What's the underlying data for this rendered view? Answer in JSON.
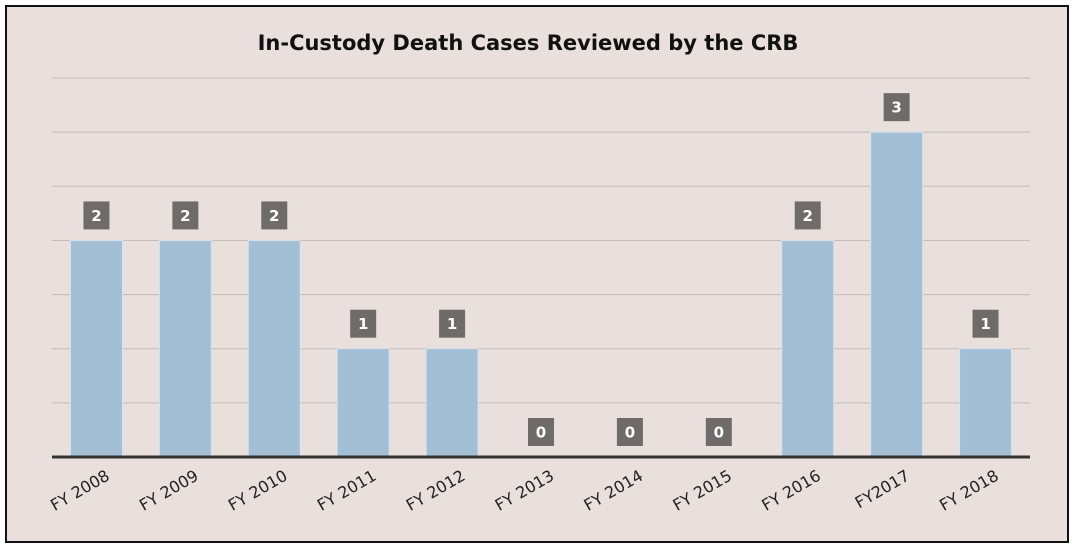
{
  "chart_data": {
    "type": "bar",
    "title": "In-Custody Death Cases Reviewed by the CRB",
    "categories": [
      "FY 2008",
      "FY 2009",
      "FY 2010",
      "FY 2011",
      "FY 2012",
      "FY 2013",
      "FY 2014",
      "FY 2015",
      "FY 2016",
      "FY2017",
      "FY 2018"
    ],
    "values": [
      2,
      2,
      2,
      1,
      1,
      0,
      0,
      0,
      2,
      3,
      1
    ],
    "color": "#a3bfd6",
    "ylim": [
      0,
      3.5
    ],
    "yticks": [
      0,
      0.5,
      1,
      1.5,
      2,
      2.5,
      3,
      3.5
    ],
    "grid": true
  }
}
